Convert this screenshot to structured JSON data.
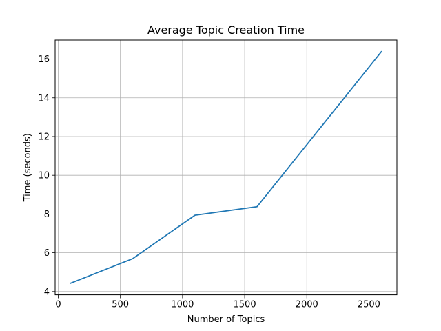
{
  "chart_data": {
    "type": "line",
    "title": "Average Topic Creation Time",
    "xlabel": "Number of Topics",
    "ylabel": "Time (seconds)",
    "x": [
      100,
      600,
      1100,
      1600,
      2600
    ],
    "series": [
      {
        "values": [
          4.43,
          5.7,
          7.94,
          8.38,
          16.38
        ],
        "color": "#1f77b4"
      }
    ],
    "xlim": [
      -25,
      2725
    ],
    "ylim": [
      3.83,
      16.98
    ],
    "xticks": [
      0,
      500,
      1000,
      1500,
      2000,
      2500
    ],
    "yticks": [
      4,
      6,
      8,
      10,
      12,
      14,
      16
    ],
    "grid": true,
    "legend": "none"
  }
}
